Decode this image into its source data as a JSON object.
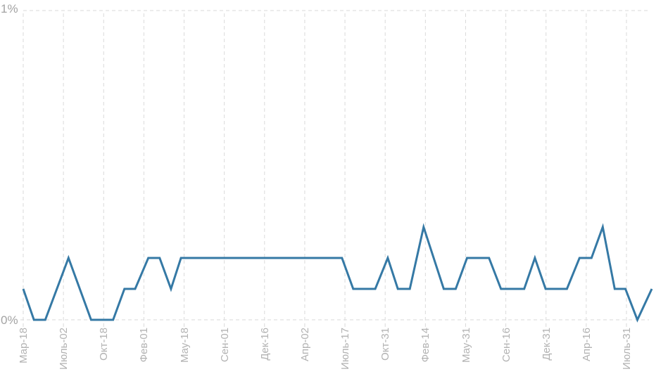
{
  "chart_data": {
    "type": "line",
    "title": "",
    "legend": "none",
    "grid": "dashed",
    "y_axis": {
      "unit": "%",
      "ylim": [
        0,
        1
      ],
      "max_label": "1%",
      "min_label": "0%",
      "ticks": [
        "1%",
        "0%"
      ]
    },
    "x_axis": {
      "rotated_labels": true,
      "tick_labels": [
        "Мар-18",
        "Июль-02",
        "Окт-18",
        "Фев-01",
        "Мау-18",
        "Сен-01",
        "Дек-16",
        "Апр-02",
        "Июль-17",
        "Окт-31",
        "Фев-14",
        "Мау-31",
        "Сен-16",
        "Дек-31",
        "Апр-16",
        "Июль-31"
      ]
    },
    "value_levels_percent": [
      0,
      0.1,
      0.2,
      0.3
    ],
    "points_format": "[x_fraction_along_date_axis, value_percent]",
    "points": [
      [
        0.0,
        0.1
      ],
      [
        0.017,
        0.0
      ],
      [
        0.035,
        0.0
      ],
      [
        0.072,
        0.2
      ],
      [
        0.108,
        0.0
      ],
      [
        0.143,
        0.0
      ],
      [
        0.161,
        0.1
      ],
      [
        0.178,
        0.1
      ],
      [
        0.199,
        0.2
      ],
      [
        0.217,
        0.2
      ],
      [
        0.235,
        0.1
      ],
      [
        0.251,
        0.2
      ],
      [
        0.507,
        0.2
      ],
      [
        0.525,
        0.1
      ],
      [
        0.56,
        0.1
      ],
      [
        0.58,
        0.2
      ],
      [
        0.596,
        0.1
      ],
      [
        0.615,
        0.1
      ],
      [
        0.637,
        0.3
      ],
      [
        0.669,
        0.1
      ],
      [
        0.688,
        0.1
      ],
      [
        0.706,
        0.2
      ],
      [
        0.741,
        0.2
      ],
      [
        0.76,
        0.1
      ],
      [
        0.797,
        0.1
      ],
      [
        0.814,
        0.2
      ],
      [
        0.831,
        0.1
      ],
      [
        0.865,
        0.1
      ],
      [
        0.885,
        0.2
      ],
      [
        0.904,
        0.2
      ],
      [
        0.922,
        0.3
      ],
      [
        0.941,
        0.1
      ],
      [
        0.958,
        0.1
      ],
      [
        0.977,
        0.0
      ],
      [
        1.0,
        0.1
      ]
    ]
  },
  "colors": {
    "line": "#3579a5",
    "grid": "#dadada",
    "axis_text": "#b2b2b2",
    "background": "#ffffff"
  }
}
